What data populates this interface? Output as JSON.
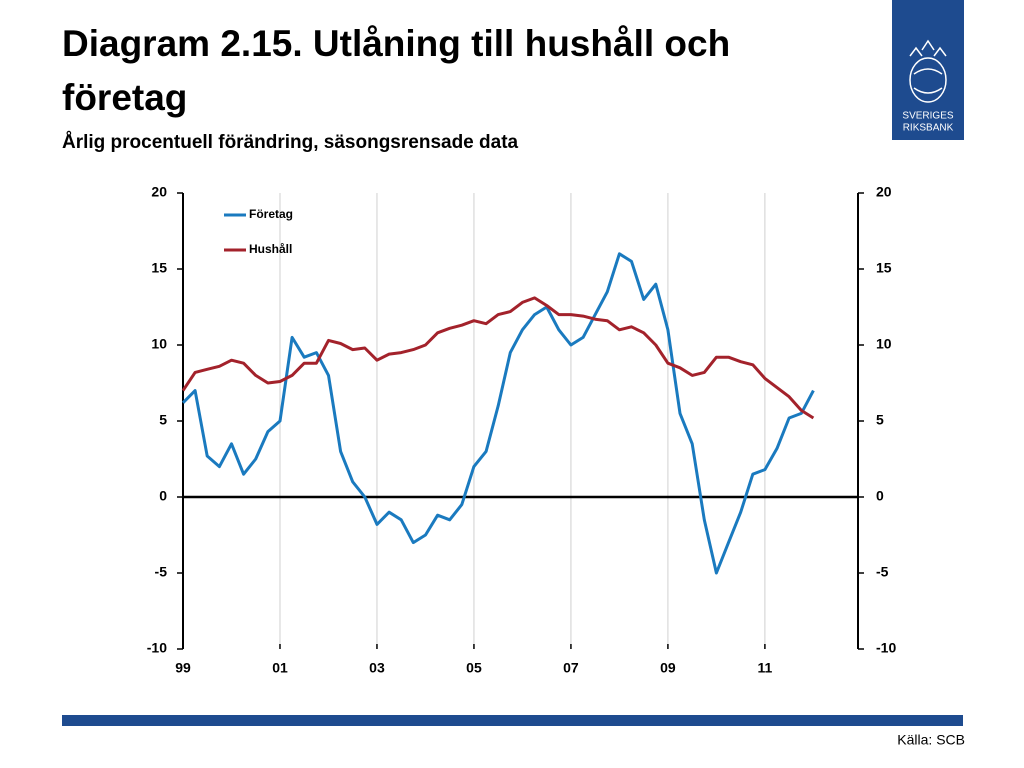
{
  "chart_data": {
    "type": "line",
    "title": "Diagram 2.15. Utlåning till hushåll och företag",
    "subtitle": "Årlig procentuell förändring, säsongsrensade data",
    "source": "Källa: SCB",
    "x": [
      1999,
      1999.25,
      1999.5,
      1999.75,
      2000,
      2000.25,
      2000.5,
      2000.75,
      2001,
      2001.25,
      2001.5,
      2001.75,
      2002,
      2002.25,
      2002.5,
      2002.75,
      2003,
      2003.25,
      2003.5,
      2003.75,
      2004,
      2004.25,
      2004.5,
      2004.75,
      2005,
      2005.25,
      2005.5,
      2005.75,
      2006,
      2006.25,
      2006.5,
      2006.75,
      2007,
      2007.25,
      2007.5,
      2007.75,
      2008,
      2008.25,
      2008.5,
      2008.75,
      2009,
      2009.25,
      2009.5,
      2009.75,
      2010,
      2010.25,
      2010.5,
      2010.75,
      2011,
      2011.25,
      2011.5,
      2011.75,
      2012
    ],
    "series": [
      {
        "name": "Företag",
        "color": "#1a7abf",
        "values": [
          6.2,
          7.0,
          2.7,
          2.0,
          3.5,
          1.5,
          2.5,
          4.3,
          5.0,
          10.5,
          9.2,
          9.5,
          8.0,
          3.0,
          1.0,
          0.0,
          -1.8,
          -1.0,
          -1.5,
          -3.0,
          -2.5,
          -1.2,
          -1.5,
          -0.5,
          2.0,
          3.0,
          6.0,
          9.5,
          11.0,
          12.0,
          12.5,
          11.0,
          10.0,
          10.5,
          12.0,
          13.5,
          16.0,
          15.5,
          13.0,
          14.0,
          11.0,
          5.5,
          3.5,
          -1.5,
          -5.0,
          -3.0,
          -1.0,
          1.5,
          1.8,
          3.2,
          5.2,
          5.5,
          7.0
        ]
      },
      {
        "name": "Hushåll",
        "color": "#a3222b",
        "values": [
          7.0,
          8.2,
          8.4,
          8.6,
          9.0,
          8.8,
          8.0,
          7.5,
          7.6,
          8.0,
          8.8,
          8.8,
          10.3,
          10.1,
          9.7,
          9.8,
          9.0,
          9.4,
          9.5,
          9.7,
          10.0,
          10.8,
          11.1,
          11.3,
          11.6,
          11.4,
          12.0,
          12.2,
          12.8,
          13.1,
          12.6,
          12.0,
          12.0,
          11.9,
          11.7,
          11.6,
          11.0,
          11.2,
          10.8,
          10.0,
          8.8,
          8.5,
          8.0,
          8.2,
          9.2,
          9.2,
          8.9,
          8.7,
          7.8,
          7.2,
          6.6,
          5.7,
          5.2
        ]
      }
    ],
    "xlim": [
      1999,
      2012.92
    ],
    "xticks": [
      {
        "value": 1999,
        "label": "99"
      },
      {
        "value": 2001,
        "label": "01"
      },
      {
        "value": 2003,
        "label": "03"
      },
      {
        "value": 2005,
        "label": "05"
      },
      {
        "value": 2007,
        "label": "07"
      },
      {
        "value": 2009,
        "label": "09"
      },
      {
        "value": 2011,
        "label": "11"
      }
    ],
    "ylim": [
      -10,
      20
    ],
    "yticks": [
      -10,
      -5,
      0,
      5,
      10,
      15,
      20
    ],
    "y2lim": [
      -10,
      20
    ],
    "y2ticks": [
      -10,
      -5,
      0,
      5,
      10,
      15,
      20
    ],
    "grid": true,
    "legend": "upper left"
  },
  "logo": {
    "lines": [
      "SVERIGES",
      "RIKSBANK"
    ]
  }
}
